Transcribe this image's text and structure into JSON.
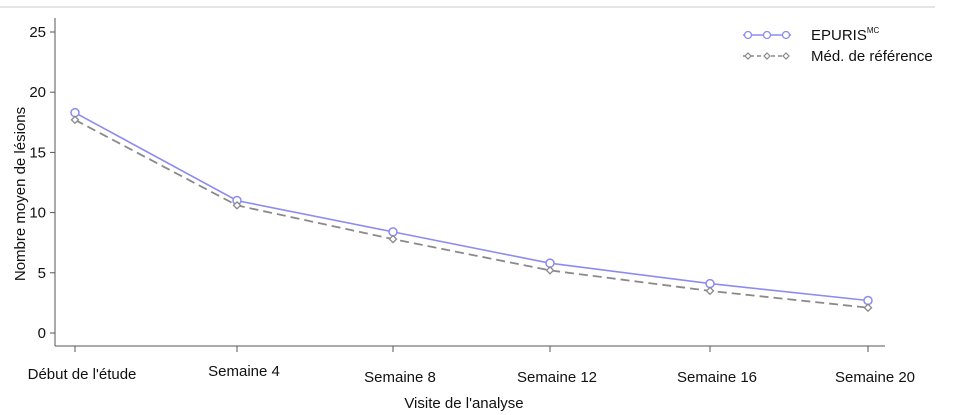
{
  "chart_data": {
    "type": "line",
    "title": "",
    "xlabel": "Visite de l'analyse",
    "ylabel": "Nombre moyen de lésions",
    "categories": [
      "Début de l'étude",
      "Semaine 4",
      "Semaine 8",
      "Semaine 12",
      "Semaine 16",
      "Semaine 20"
    ],
    "ylim": [
      0,
      25
    ],
    "yticks": [
      "0",
      "5",
      "10",
      "15",
      "20",
      "25"
    ],
    "grid": false,
    "legend_position": "top-right",
    "series": [
      {
        "name": "EPURIS",
        "name_superscript": "MC",
        "values": [
          18.3,
          11.0,
          8.4,
          5.8,
          4.1,
          2.7
        ],
        "color": "#8c8cf0",
        "line_style": "solid",
        "marker": "circle"
      },
      {
        "name": "Méd. de référence",
        "values": [
          17.7,
          10.6,
          7.8,
          5.2,
          3.5,
          2.1
        ],
        "color": "#8a8a8a",
        "line_style": "dashed",
        "marker": "diamond"
      }
    ]
  }
}
